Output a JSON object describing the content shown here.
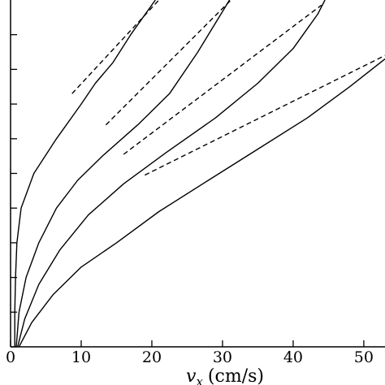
{
  "chart_data": {
    "type": "line",
    "xlabel_symbol": "v",
    "xlabel_subscript": "x",
    "xlabel_unit": "(cm/s)",
    "ylabel": "",
    "xlim": [
      0,
      53
    ],
    "x_ticks": [
      0,
      10,
      20,
      30,
      40,
      50
    ],
    "y_tick_count": 10,
    "grid": false,
    "series": [
      {
        "style": "solid",
        "points": [
          [
            0.6,
            0.0
          ],
          [
            0.6,
            0.1
          ],
          [
            0.7,
            0.2
          ],
          [
            0.9,
            0.3
          ],
          [
            1.5,
            0.4
          ],
          [
            3.3,
            0.5
          ],
          [
            6.5,
            0.6
          ],
          [
            10.0,
            0.7
          ],
          [
            12.0,
            0.76
          ],
          [
            14.5,
            0.82
          ],
          [
            17.0,
            0.9
          ],
          [
            20.5,
            1.0
          ]
        ]
      },
      {
        "style": "dashed",
        "points": [
          [
            8.7,
            0.73
          ],
          [
            21.0,
            1.0
          ]
        ]
      },
      {
        "style": "solid",
        "points": [
          [
            0.8,
            0.0
          ],
          [
            1.2,
            0.1
          ],
          [
            2.2,
            0.2
          ],
          [
            4.0,
            0.3
          ],
          [
            6.5,
            0.4
          ],
          [
            9.5,
            0.48
          ],
          [
            13.0,
            0.55
          ],
          [
            18.0,
            0.64
          ],
          [
            22.5,
            0.73
          ],
          [
            26.5,
            0.85
          ],
          [
            31.0,
            1.0
          ]
        ]
      },
      {
        "style": "dashed",
        "points": [
          [
            13.5,
            0.64
          ],
          [
            31.2,
            1.0
          ]
        ]
      },
      {
        "style": "solid",
        "points": [
          [
            1.0,
            0.0
          ],
          [
            2.0,
            0.08
          ],
          [
            4.0,
            0.18
          ],
          [
            7.0,
            0.28
          ],
          [
            11.0,
            0.38
          ],
          [
            16.0,
            0.47
          ],
          [
            22.0,
            0.56
          ],
          [
            29.0,
            0.66
          ],
          [
            35.0,
            0.76
          ],
          [
            40.0,
            0.86
          ],
          [
            43.5,
            0.96
          ],
          [
            44.5,
            1.0
          ]
        ]
      },
      {
        "style": "dashed",
        "points": [
          [
            16.0,
            0.555
          ],
          [
            44.0,
            0.985
          ]
        ]
      },
      {
        "style": "solid",
        "points": [
          [
            1.2,
            0.0
          ],
          [
            3.0,
            0.07
          ],
          [
            6.0,
            0.15
          ],
          [
            10.0,
            0.23
          ],
          [
            15.0,
            0.3
          ],
          [
            21.0,
            0.39
          ],
          [
            28.0,
            0.48
          ],
          [
            35.0,
            0.57
          ],
          [
            42.0,
            0.66
          ],
          [
            48.0,
            0.75
          ],
          [
            53.0,
            0.83
          ]
        ]
      },
      {
        "style": "dashed",
        "points": [
          [
            19.0,
            0.495
          ],
          [
            53.0,
            0.84
          ]
        ]
      }
    ]
  }
}
